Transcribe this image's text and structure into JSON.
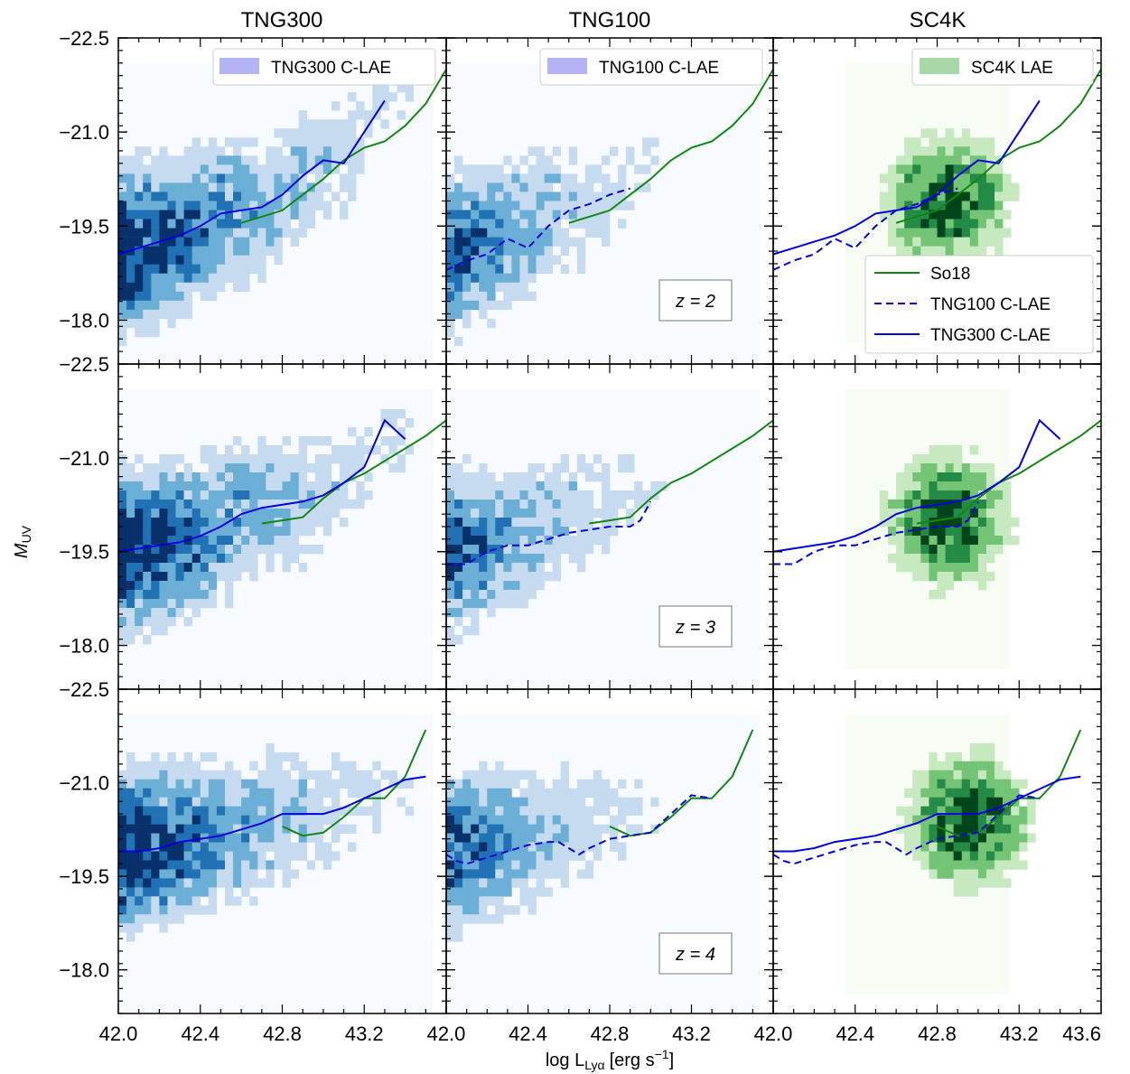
{
  "chart_data": {
    "type": "heatmap",
    "column_titles": [
      "TNG300",
      "TNG100",
      "SC4K"
    ],
    "xlabel": "log L",
    "xlabel_sub": "Lyα",
    "xlabel_units": "[erg s",
    "xlabel_exp": "−1",
    "xlabel_close": "]",
    "ylabel": "M",
    "ylabel_sub": "UV",
    "xlim": [
      42.0,
      43.6
    ],
    "ylim": [
      -17.3,
      -22.5
    ],
    "x_ticks": [
      42.0,
      42.4,
      42.8,
      43.2
    ],
    "x_tick_labels": [
      "42.0",
      "42.4",
      "42.8",
      "43.2"
    ],
    "x_last_tick": 43.6,
    "x_last_tick_label": "43.6",
    "y_ticks": [
      -22.5,
      -21.0,
      -19.5,
      -18.0
    ],
    "y_tick_labels": [
      "−22.5",
      "−21.0",
      "−19.5",
      "−18.0"
    ],
    "rows": [
      {
        "redshift_label": "z = 2",
        "so18": {
          "x": [
            42.6,
            42.7,
            42.8,
            42.9,
            43.0,
            43.1,
            43.2,
            43.3,
            43.4,
            43.5,
            43.6
          ],
          "y": [
            -19.55,
            -19.65,
            -19.75,
            -20.0,
            -20.25,
            -20.55,
            -20.75,
            -20.85,
            -21.1,
            -21.45,
            -22.0
          ]
        },
        "tng100": {
          "x": [
            42.0,
            42.1,
            42.2,
            42.3,
            42.4,
            42.5,
            42.6,
            42.7,
            42.8,
            42.9
          ],
          "y": [
            -18.8,
            -18.95,
            -19.05,
            -19.3,
            -19.15,
            -19.5,
            -19.75,
            -19.85,
            -20.0,
            -20.1
          ]
        },
        "tng300": {
          "x": [
            42.0,
            42.1,
            42.2,
            42.3,
            42.4,
            42.5,
            42.6,
            42.7,
            42.8,
            42.9,
            43.0,
            43.1,
            43.2,
            43.3
          ],
          "y": [
            -19.05,
            -19.15,
            -19.25,
            -19.35,
            -19.5,
            -19.7,
            -19.75,
            -19.8,
            -20.0,
            -20.3,
            -20.55,
            -20.5,
            -21.0,
            -21.5
          ]
        }
      },
      {
        "redshift_label": "z = 3",
        "so18": {
          "x": [
            42.7,
            42.8,
            42.9,
            43.0,
            43.1,
            43.2,
            43.3,
            43.4,
            43.5,
            43.6
          ],
          "y": [
            -19.95,
            -20.0,
            -20.05,
            -20.35,
            -20.6,
            -20.75,
            -20.95,
            -21.15,
            -21.35,
            -21.6
          ]
        },
        "tng100": {
          "x": [
            42.0,
            42.05,
            42.1,
            42.2,
            42.3,
            42.4,
            42.5,
            42.6,
            42.7,
            42.8,
            42.9,
            42.95,
            43.0
          ],
          "y": [
            -19.3,
            -19.3,
            -19.3,
            -19.5,
            -19.6,
            -19.6,
            -19.7,
            -19.8,
            -19.85,
            -19.9,
            -19.9,
            -20.0,
            -20.3
          ]
        },
        "tng300": {
          "x": [
            42.0,
            42.1,
            42.2,
            42.3,
            42.4,
            42.5,
            42.6,
            42.7,
            42.8,
            42.9,
            43.0,
            43.1,
            43.2,
            43.3,
            43.4
          ],
          "y": [
            -19.5,
            -19.55,
            -19.6,
            -19.65,
            -19.75,
            -19.9,
            -20.1,
            -20.2,
            -20.25,
            -20.3,
            -20.4,
            -20.6,
            -20.85,
            -21.6,
            -21.3
          ]
        }
      },
      {
        "redshift_label": "z = 4",
        "so18": {
          "x": [
            42.8,
            42.9,
            43.0,
            43.1,
            43.2,
            43.3,
            43.4,
            43.5
          ],
          "y": [
            -20.3,
            -20.15,
            -20.2,
            -20.45,
            -20.75,
            -20.75,
            -21.1,
            -21.85
          ]
        },
        "tng100": {
          "x": [
            42.0,
            42.05,
            42.1,
            42.2,
            42.3,
            42.4,
            42.5,
            42.55,
            42.6,
            42.65,
            42.7,
            42.8,
            42.9,
            43.0,
            43.1,
            43.2,
            43.3
          ],
          "y": [
            -19.85,
            -19.75,
            -19.7,
            -19.8,
            -19.9,
            -20.0,
            -20.05,
            -20.05,
            -19.95,
            -19.85,
            -19.95,
            -20.1,
            -20.15,
            -20.2,
            -20.5,
            -20.8,
            -20.75
          ]
        },
        "tng300": {
          "x": [
            42.0,
            42.1,
            42.2,
            42.3,
            42.4,
            42.5,
            42.6,
            42.7,
            42.8,
            42.9,
            43.0,
            43.1,
            43.2,
            43.3,
            43.4,
            43.5
          ],
          "y": [
            -19.9,
            -19.9,
            -19.95,
            -20.05,
            -20.1,
            -20.15,
            -20.25,
            -20.35,
            -20.5,
            -20.5,
            -20.5,
            -20.6,
            -20.75,
            -20.9,
            -21.05,
            -21.1
          ]
        }
      }
    ],
    "top_legends": [
      "TNG300 C-LAE",
      "TNG100 C-LAE",
      "SC4K LAE"
    ],
    "line_legend": [
      "So18",
      "TNG100 C-LAE",
      "TNG300 C-LAE"
    ],
    "colors": {
      "so18": "#118811",
      "tng_line": "#0000dd",
      "legend_patch_tng": "#b3b3f5",
      "legend_patch_sc4k": "#a8d8a8",
      "blue_cmap": [
        "#f7fbff",
        "#c6dbef",
        "#6baed6",
        "#2171b5",
        "#08306b"
      ],
      "green_cmap": [
        "#f7fcf5",
        "#c7e9c0",
        "#74c476",
        "#238b45",
        "#00441b"
      ]
    },
    "grid": false
  }
}
